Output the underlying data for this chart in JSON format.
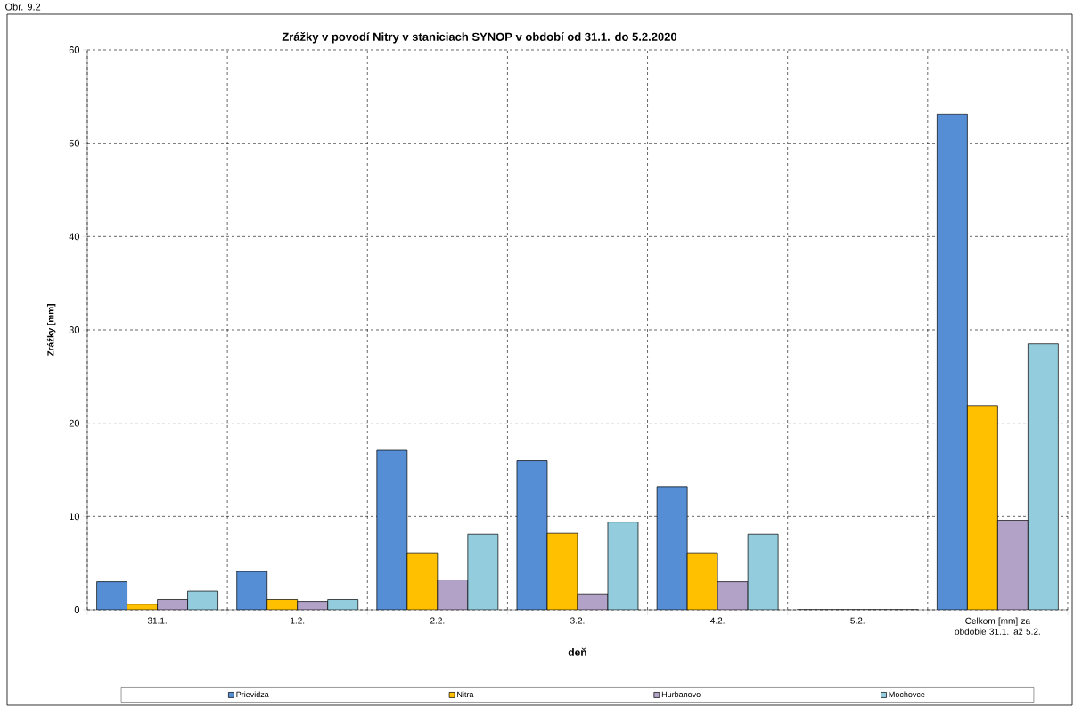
{
  "chart_data": {
    "type": "bar",
    "title": "Zrážky v povodí Nitry v staniciach SYNOP v období od 31.1. do  5.2.2020",
    "xlabel": "deň",
    "ylabel": "Zrážky [mm]",
    "annotations": [
      "Obr. 9.2"
    ],
    "categories": [
      "31.1.",
      "1.2.",
      "2.2.",
      "3.2.",
      "4.2.",
      "5.2.",
      "Celkom [mm] za obdobie 31.1. až 5.2."
    ],
    "series": [
      {
        "name": "Prievidza",
        "color": "#558ed5",
        "values": [
          3.0,
          4.1,
          17.1,
          16.0,
          13.2,
          0,
          53.1
        ]
      },
      {
        "name": "Nitra",
        "color": "#ffc000",
        "values": [
          0.6,
          1.1,
          6.1,
          8.2,
          6.1,
          0,
          21.9
        ]
      },
      {
        "name": "Hurbanovo",
        "color": "#b3a2c7",
        "values": [
          1.1,
          0.9,
          3.2,
          1.7,
          3.0,
          0,
          9.6
        ]
      },
      {
        "name": "Mochovce",
        "color": "#93cddd",
        "values": [
          2.0,
          1.1,
          8.1,
          9.4,
          8.1,
          0,
          28.5
        ]
      }
    ],
    "ylim": [
      0,
      60
    ],
    "yticks": [
      0,
      10,
      20,
      30,
      40,
      50,
      60
    ],
    "grid": true,
    "legend": "bottom"
  }
}
